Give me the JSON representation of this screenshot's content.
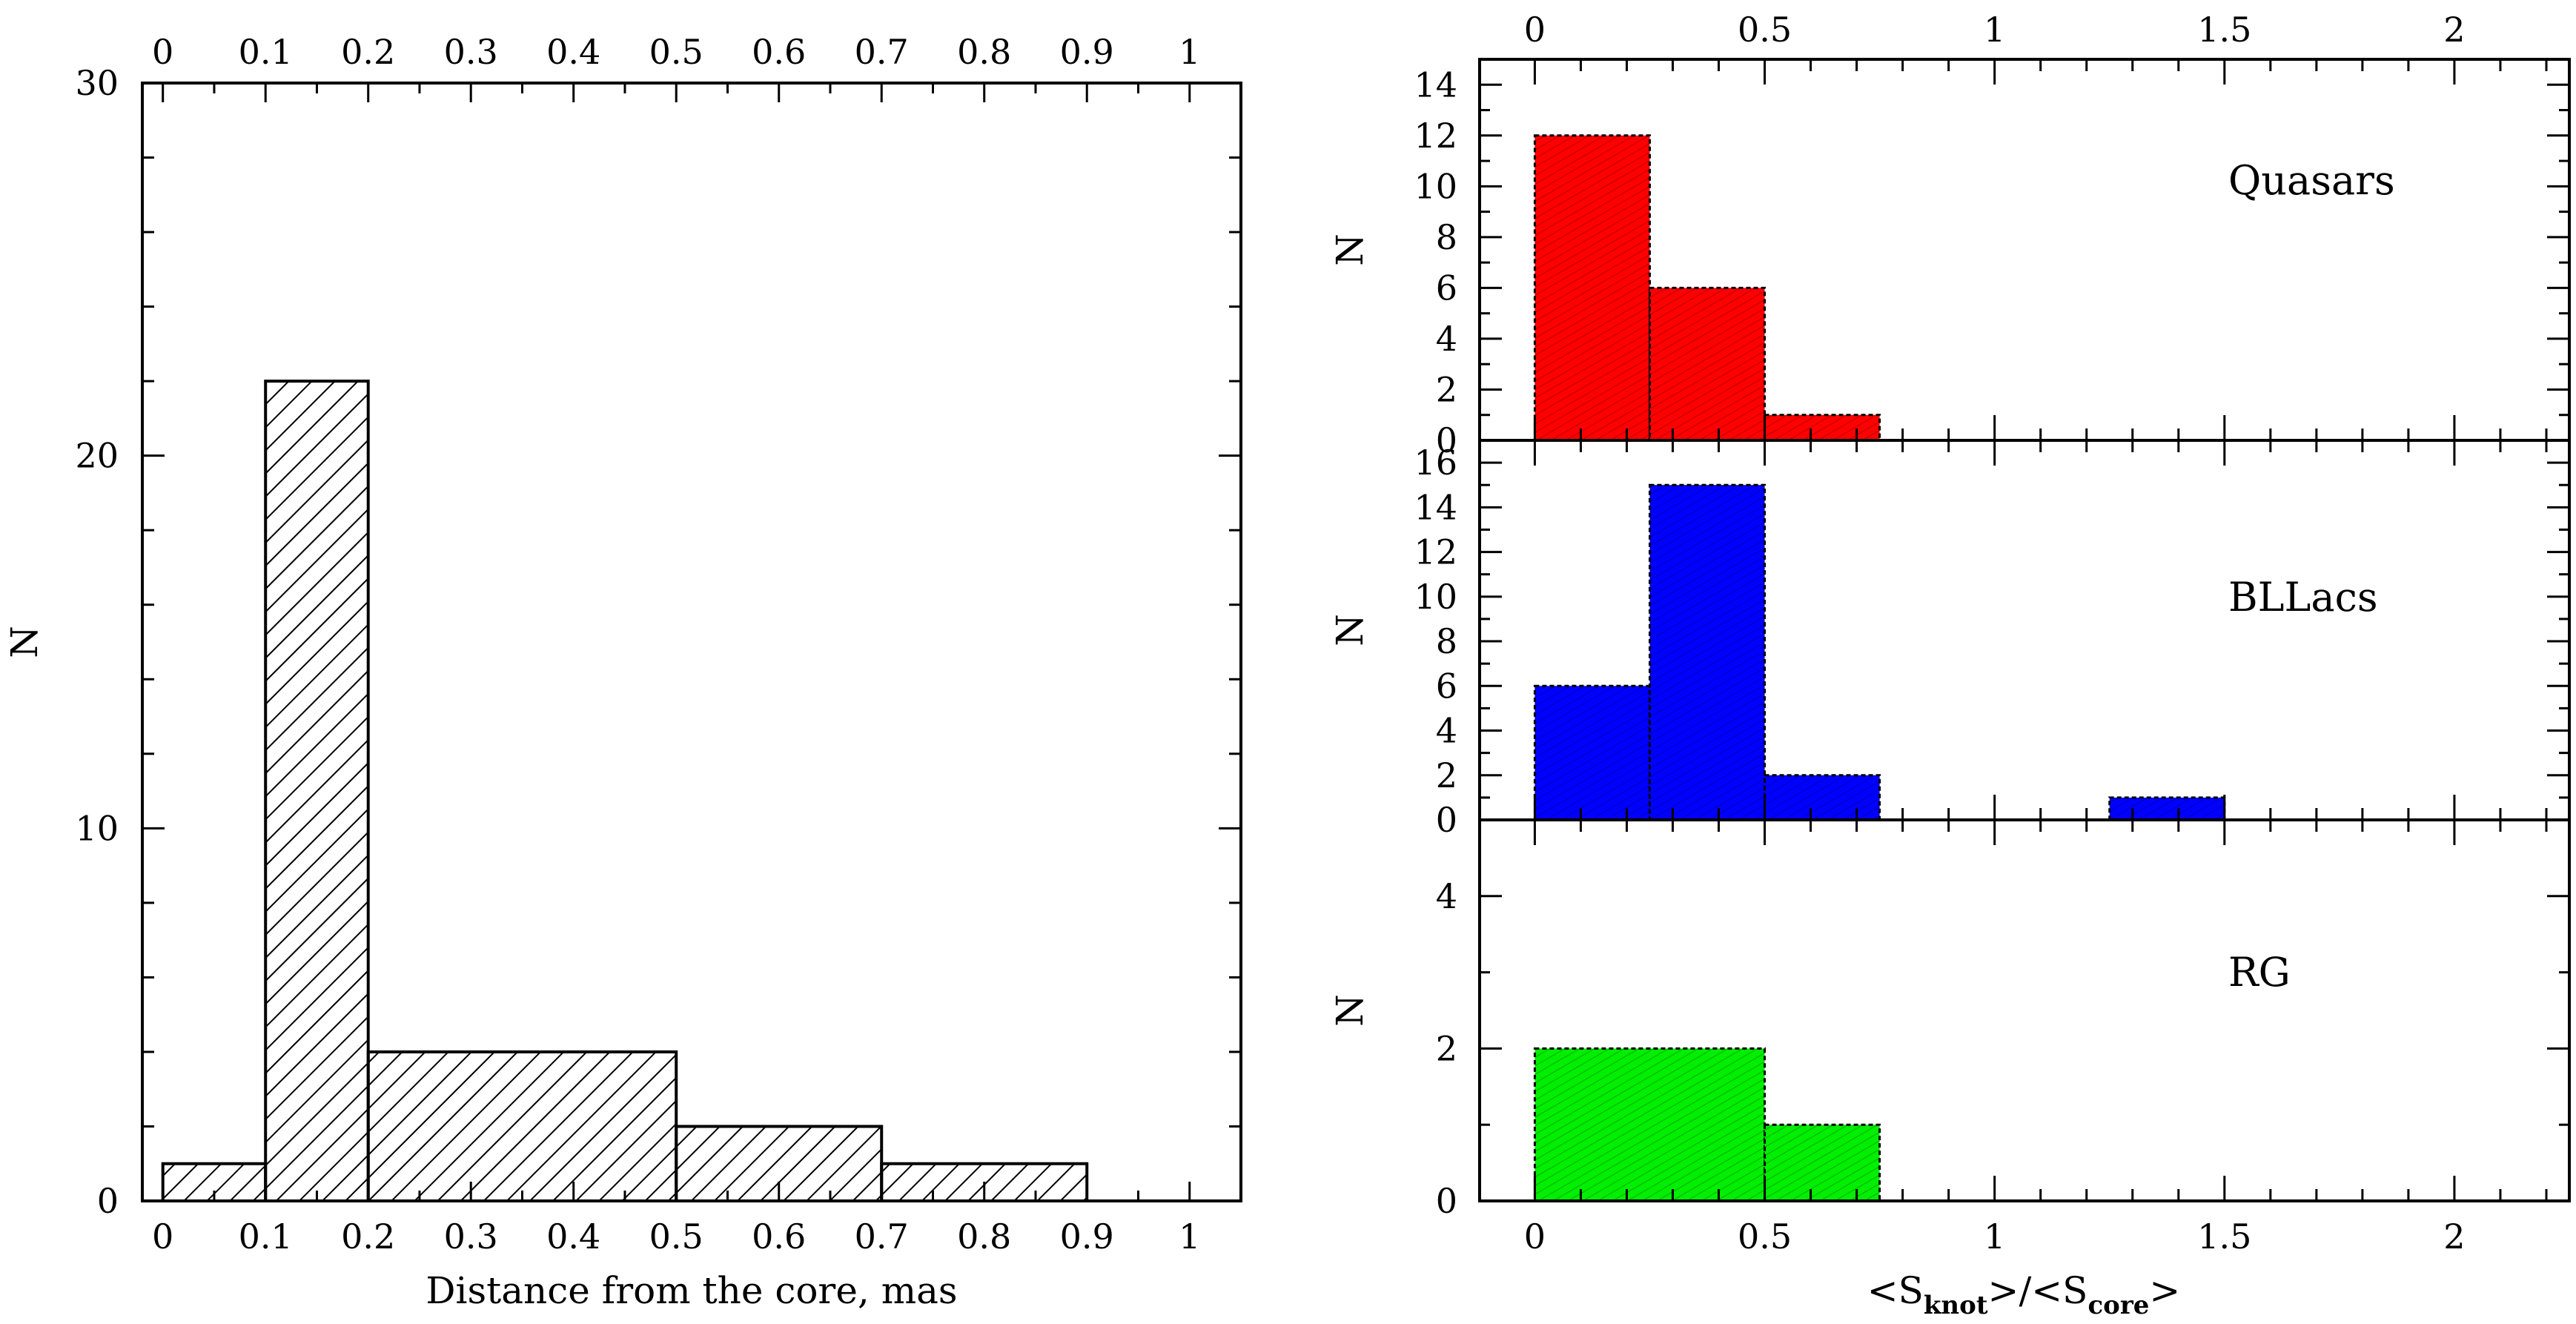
{
  "chart_data": [
    {
      "type": "bar",
      "panel": "left",
      "bins": [
        {
          "x0": 0.0,
          "x1": 0.1,
          "value": 1
        },
        {
          "x0": 0.1,
          "x1": 0.2,
          "value": 22
        },
        {
          "x0": 0.2,
          "x1": 0.5,
          "value": 4
        },
        {
          "x0": 0.5,
          "x1": 0.7,
          "value": 2
        },
        {
          "x0": 0.7,
          "x1": 0.9,
          "value": 1
        }
      ],
      "xlim": [
        -0.02,
        1.05
      ],
      "ylim": [
        0,
        30
      ],
      "xticks": [
        "0",
        "0.1",
        "0.2",
        "0.3",
        "0.4",
        "0.5",
        "0.6",
        "0.7",
        "0.8",
        "0.9",
        "1"
      ],
      "yticks": [
        "0",
        "10",
        "20",
        "30"
      ],
      "xlabel": "Distance from the core, mas",
      "ylabel": "N",
      "fill": "hatch",
      "color": "#000000"
    },
    {
      "type": "bar",
      "panel": "right-top",
      "bins": [
        {
          "x0": 0.0,
          "x1": 0.25,
          "value": 12
        },
        {
          "x0": 0.25,
          "x1": 0.5,
          "value": 6
        },
        {
          "x0": 0.5,
          "x1": 0.75,
          "value": 1
        }
      ],
      "xlim": [
        -0.12,
        2.25
      ],
      "ylim": [
        0,
        15
      ],
      "xticks": [
        "0",
        "0.5",
        "1",
        "1.5",
        "2"
      ],
      "yticks": [
        "0",
        "2",
        "4",
        "6",
        "8",
        "10",
        "12",
        "14"
      ],
      "ylabel": "N",
      "label": "Quasars",
      "color": "#ff0000"
    },
    {
      "type": "bar",
      "panel": "right-middle",
      "bins": [
        {
          "x0": 0.0,
          "x1": 0.25,
          "value": 6
        },
        {
          "x0": 0.25,
          "x1": 0.5,
          "value": 15
        },
        {
          "x0": 0.5,
          "x1": 0.75,
          "value": 2
        },
        {
          "x0": 1.25,
          "x1": 1.5,
          "value": 1
        }
      ],
      "xlim": [
        -0.12,
        2.25
      ],
      "ylim": [
        0,
        17
      ],
      "yticks": [
        "0",
        "2",
        "4",
        "6",
        "8",
        "10",
        "12",
        "14",
        "16"
      ],
      "ylabel": "N",
      "label": "BLLacs",
      "color": "#0000ff"
    },
    {
      "type": "bar",
      "panel": "right-bottom",
      "bins": [
        {
          "x0": 0.0,
          "x1": 0.5,
          "value": 2
        },
        {
          "x0": 0.5,
          "x1": 0.75,
          "value": 1
        }
      ],
      "xlim": [
        -0.12,
        2.25
      ],
      "ylim": [
        0,
        5
      ],
      "xticks": [
        "0",
        "0.5",
        "1",
        "1.5",
        "2"
      ],
      "yticks": [
        "0",
        "2",
        "4"
      ],
      "xlabel": {
        "open": "<S",
        "knot": "knot",
        "mid": ">/<S",
        "core": "core",
        "close": ">"
      },
      "ylabel": "N",
      "label": "RG",
      "color": "#00ee00"
    }
  ]
}
